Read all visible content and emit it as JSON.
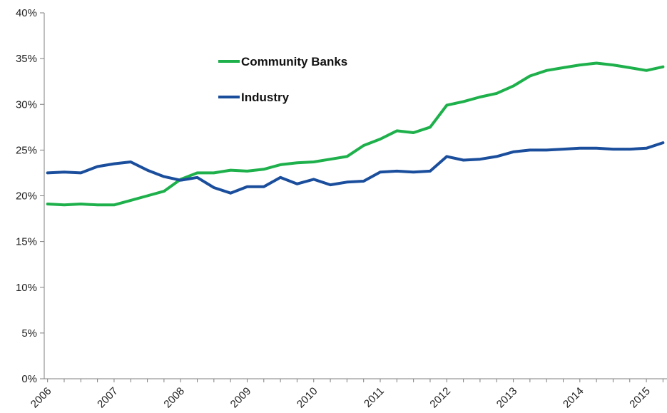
{
  "chart_data": {
    "type": "line",
    "title": "",
    "xlabel": "",
    "ylabel": "",
    "ylim": [
      0,
      40
    ],
    "y_ticks": [
      "0%",
      "5%",
      "10%",
      "15%",
      "20%",
      "25%",
      "30%",
      "35%",
      "40%"
    ],
    "x_ticks": [
      "2006",
      "2007",
      "2008",
      "2009",
      "2010",
      "2011",
      "2012",
      "2013",
      "2014",
      "2015"
    ],
    "grid": false,
    "legend_position": "top-center",
    "x": [
      2006.0,
      2006.25,
      2006.5,
      2006.75,
      2007.0,
      2007.25,
      2007.5,
      2007.75,
      2008.0,
      2008.25,
      2008.5,
      2008.75,
      2009.0,
      2009.25,
      2009.5,
      2009.75,
      2010.0,
      2010.25,
      2010.5,
      2010.75,
      2011.0,
      2011.25,
      2011.5,
      2011.75,
      2012.0,
      2012.25,
      2012.5,
      2012.75,
      2013.0,
      2013.25,
      2013.5,
      2013.75,
      2014.0,
      2014.25,
      2014.5,
      2014.75,
      2015.0,
      2015.25
    ],
    "series": [
      {
        "name": "Community Banks",
        "color": "#1db04b",
        "values": [
          19.1,
          19.0,
          19.1,
          19.0,
          19.0,
          19.5,
          20.0,
          20.5,
          21.8,
          22.5,
          22.5,
          22.8,
          22.7,
          22.9,
          23.4,
          23.6,
          23.7,
          24.0,
          24.3,
          25.5,
          26.2,
          27.1,
          26.9,
          27.5,
          29.9,
          30.3,
          30.8,
          31.2,
          32.0,
          33.1,
          33.7,
          34.0,
          34.3,
          34.5,
          34.3,
          34.0,
          33.7,
          34.1
        ]
      },
      {
        "name": "Industry",
        "color": "#1a4e9c",
        "values": [
          22.5,
          22.6,
          22.5,
          23.2,
          23.5,
          23.7,
          22.8,
          22.1,
          21.7,
          22.0,
          20.9,
          20.3,
          21.0,
          21.0,
          22.0,
          21.3,
          21.8,
          21.2,
          21.5,
          21.6,
          22.6,
          22.7,
          22.6,
          22.7,
          24.3,
          23.9,
          24.0,
          24.3,
          24.8,
          25.0,
          25.0,
          25.1,
          25.2,
          25.2,
          25.1,
          25.1,
          25.2,
          25.8
        ]
      }
    ]
  }
}
